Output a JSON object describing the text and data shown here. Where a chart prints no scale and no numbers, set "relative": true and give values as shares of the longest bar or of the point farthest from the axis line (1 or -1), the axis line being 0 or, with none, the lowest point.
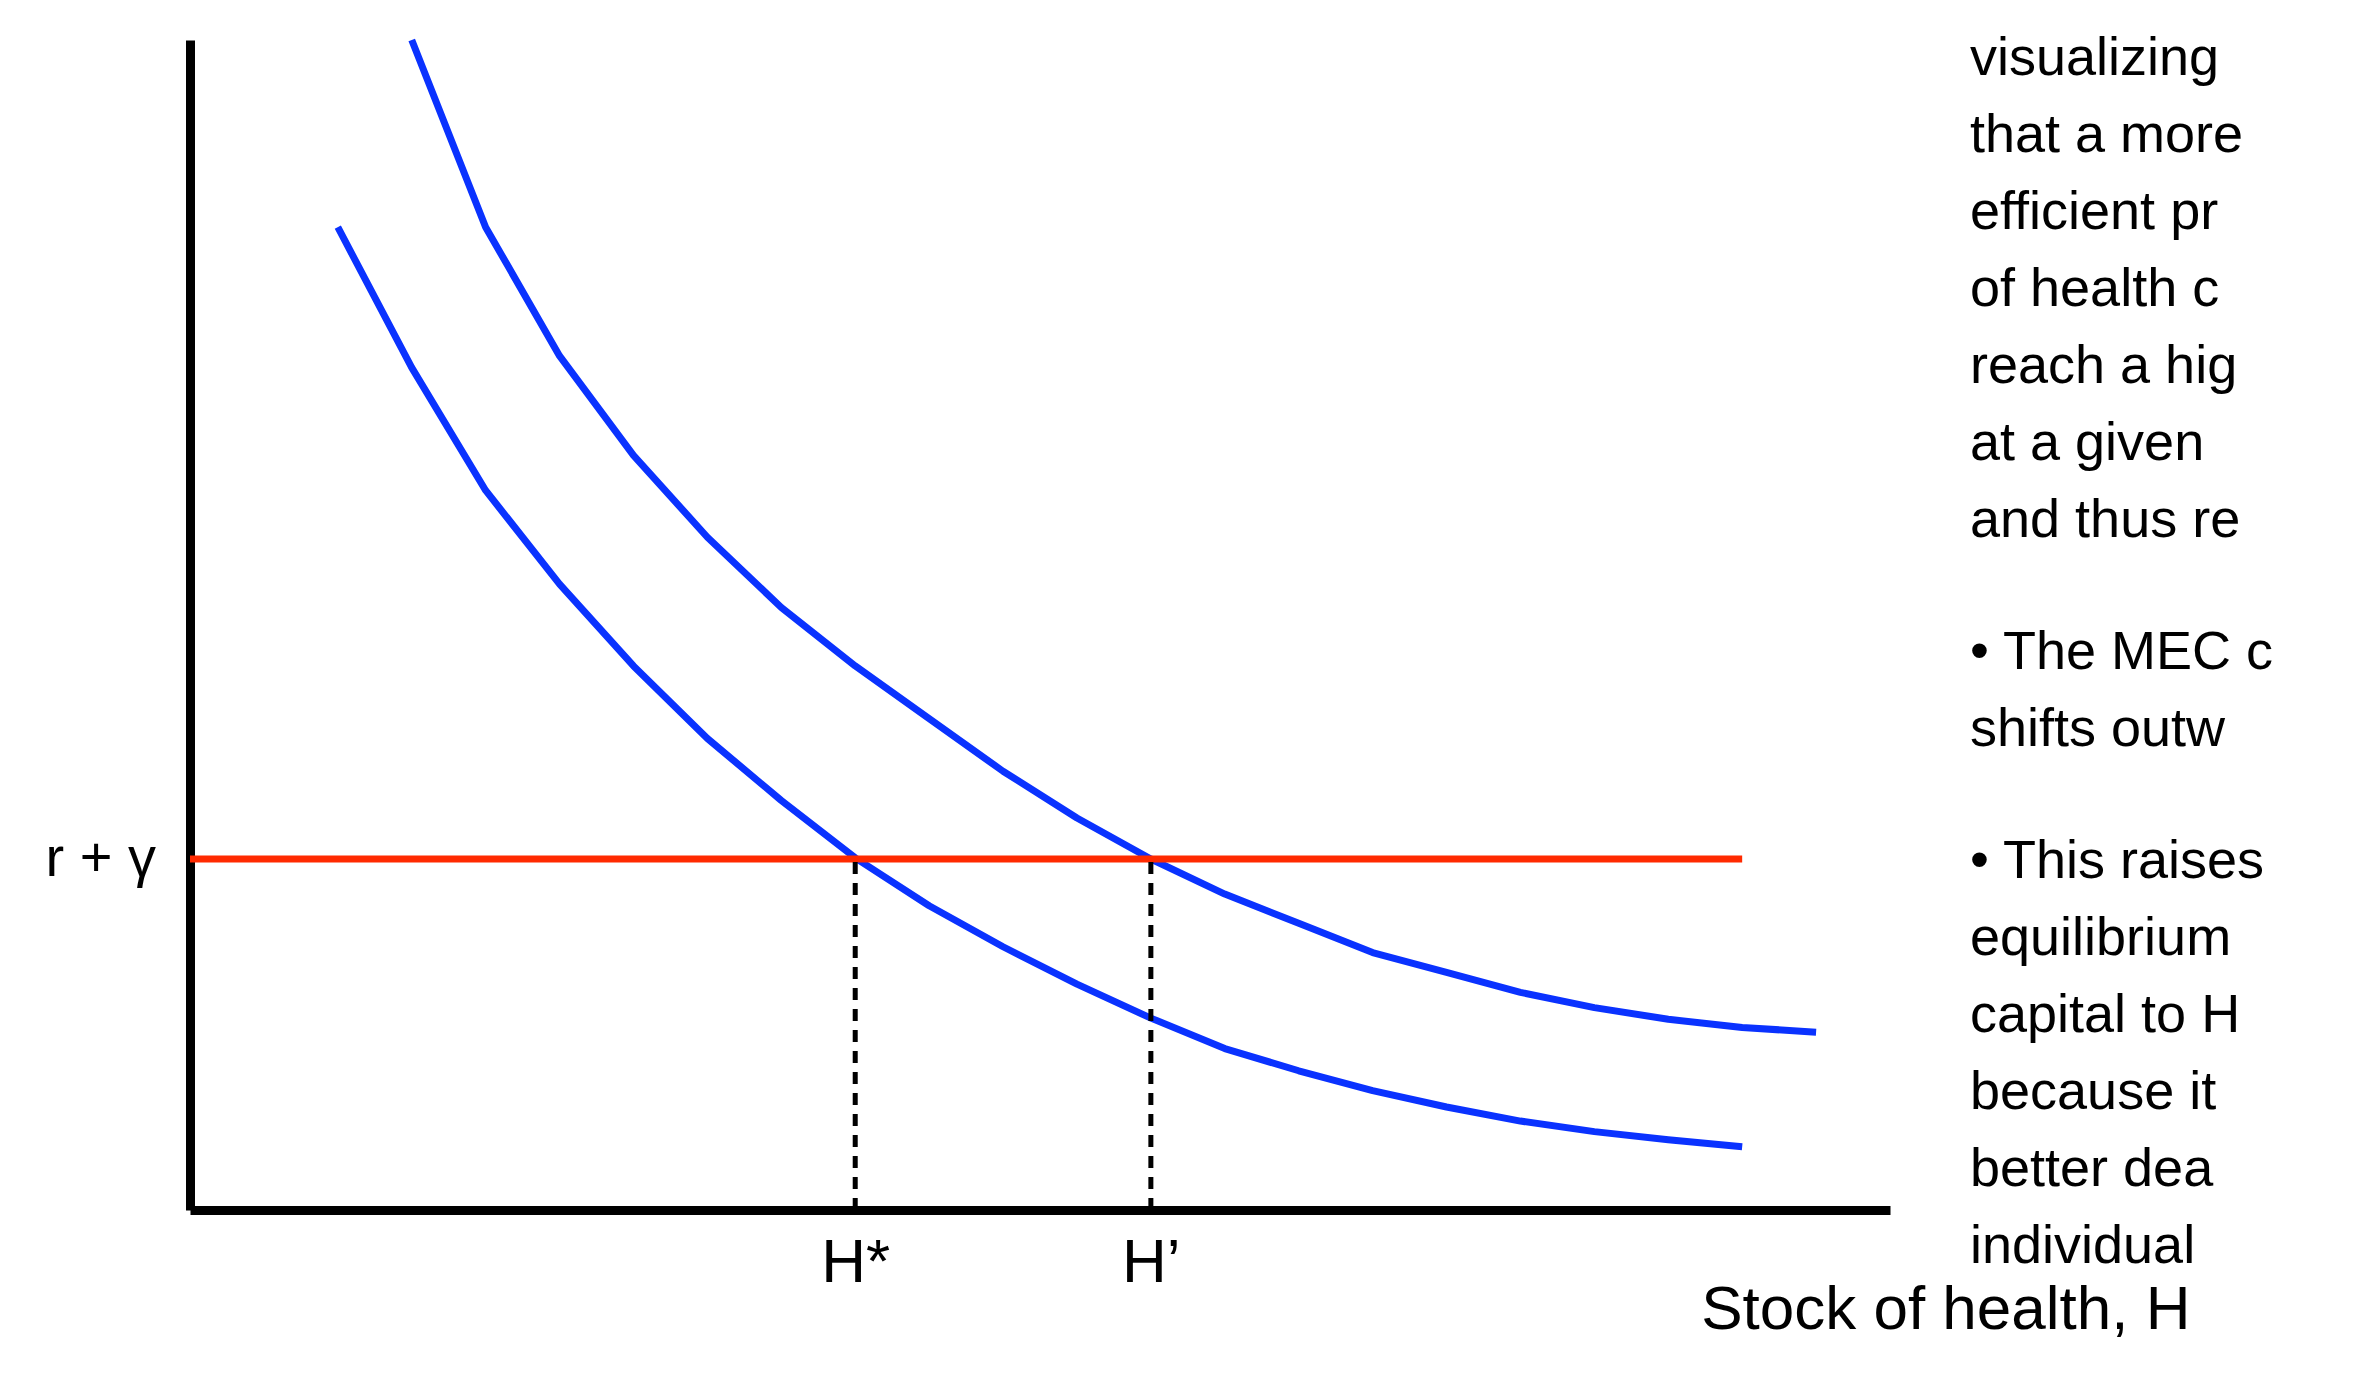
{
  "chart_data": {
    "type": "line",
    "relative": true,
    "xlabel": "Stock of health, H",
    "categories": [
      null,
      null,
      null,
      null,
      null,
      null,
      null,
      null,
      null,
      "H*",
      null,
      null,
      null,
      "H’",
      null,
      null,
      null,
      null,
      null,
      null,
      null,
      null,
      null,
      null
    ],
    "series": [
      {
        "color": "#0a32ff",
        "values": [
          null,
          null,
          null,
          1.0,
          0.84,
          0.73,
          0.645,
          0.575,
          0.515,
          0.465,
          0.42,
          0.375,
          0.335,
          0.3,
          0.27,
          0.245,
          0.22,
          0.203,
          0.186,
          0.173,
          0.163,
          0.156,
          0.152,
          null
        ]
      },
      {
        "color": "#0a32ff",
        "values": [
          null,
          null,
          0.84,
          0.72,
          0.615,
          0.535,
          0.465,
          0.403,
          0.35,
          0.301,
          0.26,
          0.225,
          0.193,
          0.164,
          0.138,
          0.119,
          0.102,
          0.088,
          0.076,
          0.067,
          0.06,
          0.054,
          null,
          null
        ]
      },
      {
        "name": "r + γ",
        "color": "#ff2a00",
        "values": [
          0.3,
          0.3,
          0.3,
          0.3,
          0.3,
          0.3,
          0.3,
          0.3,
          0.3,
          0.3,
          0.3,
          0.3,
          0.3,
          0.3,
          0.3,
          0.3,
          0.3,
          0.3,
          0.3,
          0.3,
          0.3,
          0.3,
          null,
          null
        ]
      }
    ],
    "ref_lines": [
      {
        "axis": "x",
        "value": "H*",
        "color": "#000000",
        "line_style": "dashed"
      },
      {
        "axis": "x",
        "value": "H’",
        "color": "#000000",
        "line_style": "dashed"
      }
    ],
    "annotations": [
      "visualizing\nthat a more\nefficient pr\nof health c\nreach a hig\nat a given\nand thus re",
      "• The MEC c\nshifts outw",
      "• This raises\nequilibrium\ncapital to H\nbecause it\nbetter dea\nindividual"
    ]
  }
}
